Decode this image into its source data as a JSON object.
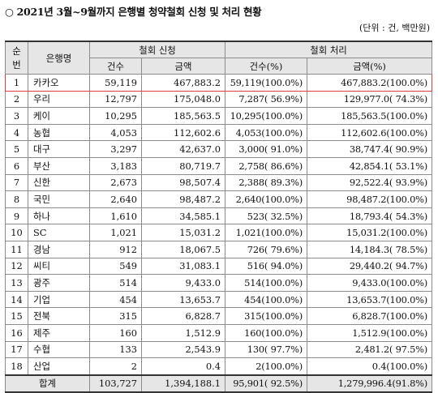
{
  "title": "○ 2021년 3월~9월까지 은행별 청약철회 신청 및 처리 현황",
  "unit": "(단위 : 건, 백만원)",
  "header": {
    "rank": "순\n번",
    "rank_top": "순",
    "rank_bottom": "번",
    "bank": "은행명",
    "apply_group": "철회 신청",
    "process_group": "철회 처리",
    "apply_count": "건수",
    "apply_amount": "금액",
    "process_count": "건수(%)",
    "process_amount": "금액(%)"
  },
  "rows": [
    {
      "no": "1",
      "bank": "카카오",
      "apply_count": "59,119",
      "apply_amount": "467,883.2",
      "process_count": "59,119(100.0%)",
      "process_amount": "467,883.2(100.0%)"
    },
    {
      "no": "2",
      "bank": "우리",
      "apply_count": "12,797",
      "apply_amount": "175,048.0",
      "process_count": "7,287( 56.9%)",
      "process_amount": "129,977.0( 74.3%)"
    },
    {
      "no": "3",
      "bank": "케이",
      "apply_count": "10,295",
      "apply_amount": "185,563.5",
      "process_count": "10,295(100.0%)",
      "process_amount": "185,563.5(100.0%)"
    },
    {
      "no": "4",
      "bank": "농협",
      "apply_count": "4,053",
      "apply_amount": "112,602.6",
      "process_count": "4,053(100.0%)",
      "process_amount": "112,602.6(100.0%)"
    },
    {
      "no": "5",
      "bank": "대구",
      "apply_count": "3,297",
      "apply_amount": "42,637.0",
      "process_count": "3,000( 91.0%)",
      "process_amount": "38,747.4( 90.9%)"
    },
    {
      "no": "6",
      "bank": "부산",
      "apply_count": "3,183",
      "apply_amount": "80,719.7",
      "process_count": "2,758( 86.6%)",
      "process_amount": "42,854.1( 53.1%)"
    },
    {
      "no": "7",
      "bank": "신한",
      "apply_count": "2,673",
      "apply_amount": "98,507.4",
      "process_count": "2,388( 89.3%)",
      "process_amount": "92,522.4( 93.9%)"
    },
    {
      "no": "8",
      "bank": "국민",
      "apply_count": "2,640",
      "apply_amount": "98,487.2",
      "process_count": "2,640(100.0%)",
      "process_amount": "98,487.2(100.0%)"
    },
    {
      "no": "9",
      "bank": "하나",
      "apply_count": "1,610",
      "apply_amount": "34,585.1",
      "process_count": "523( 32.5%)",
      "process_amount": "18,793.4( 54.3%)"
    },
    {
      "no": "10",
      "bank": "SC",
      "apply_count": "1,021",
      "apply_amount": "15,031.2",
      "process_count": "1,021(100.0%)",
      "process_amount": "15,031.2(100.0%)"
    },
    {
      "no": "11",
      "bank": "경남",
      "apply_count": "912",
      "apply_amount": "18,067.5",
      "process_count": "726( 79.6%)",
      "process_amount": "14,184.3( 78.5%)"
    },
    {
      "no": "12",
      "bank": "씨티",
      "apply_count": "549",
      "apply_amount": "31,083.1",
      "process_count": "516( 94.0%)",
      "process_amount": "29,440.2( 94.7%)"
    },
    {
      "no": "13",
      "bank": "광주",
      "apply_count": "514",
      "apply_amount": "9,433.0",
      "process_count": "514(100.0%)",
      "process_amount": "9,433.0(100.0%)"
    },
    {
      "no": "14",
      "bank": "기업",
      "apply_count": "454",
      "apply_amount": "13,653.7",
      "process_count": "454(100.0%)",
      "process_amount": "13,653.7(100.0%)"
    },
    {
      "no": "15",
      "bank": "전북",
      "apply_count": "315",
      "apply_amount": "6,828.7",
      "process_count": "315(100.0%)",
      "process_amount": "6,828.7(100.0%)"
    },
    {
      "no": "16",
      "bank": "제주",
      "apply_count": "160",
      "apply_amount": "1,512.9",
      "process_count": "160(100.0%)",
      "process_amount": "1,512.9(100.0%)"
    },
    {
      "no": "17",
      "bank": "수협",
      "apply_count": "133",
      "apply_amount": "2,543.9",
      "process_count": "130( 97.7%)",
      "process_amount": "2,481.2( 97.5%)"
    },
    {
      "no": "18",
      "bank": "산업",
      "apply_count": "2",
      "apply_amount": "0.4",
      "process_count": "2(100.0%)",
      "process_amount": "0.4(100.0%)"
    }
  ],
  "total": {
    "label": "합계",
    "apply_count": "103,727",
    "apply_amount": "1,394,188.1",
    "process_count": "95,901( 92.5%)",
    "process_amount": "1,279,996.4(91.8%)"
  },
  "highlight_color": "#e03a3a",
  "header_bg": "#e6e6e6"
}
